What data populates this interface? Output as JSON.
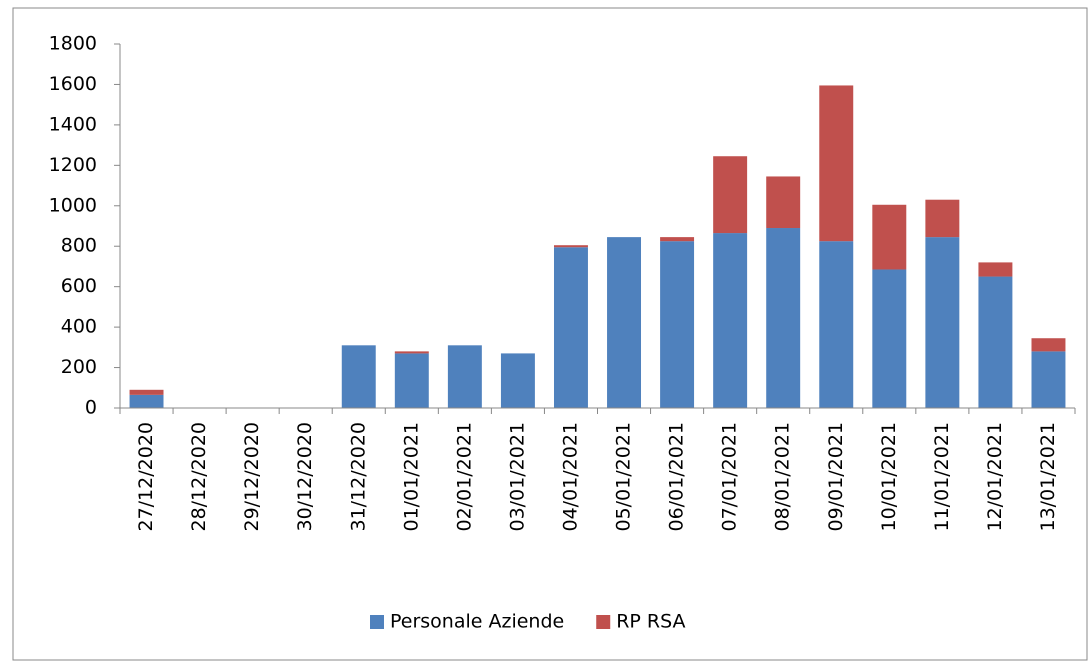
{
  "chart_data": {
    "type": "stacked_bar",
    "categories": [
      "27/12/2020",
      "28/12/2020",
      "29/12/2020",
      "30/12/2020",
      "31/12/2020",
      "01/01/2021",
      "02/01/2021",
      "03/01/2021",
      "04/01/2021",
      "05/01/2021",
      "06/01/2021",
      "07/01/2021",
      "08/01/2021",
      "09/01/2021",
      "10/01/2021",
      "11/01/2021",
      "12/01/2021",
      "13/01/2021"
    ],
    "series": [
      {
        "name": "Personale Aziende",
        "color": "#4f81bd",
        "values": [
          65,
          0,
          0,
          0,
          310,
          270,
          310,
          270,
          795,
          845,
          825,
          865,
          890,
          825,
          685,
          845,
          650,
          280
        ]
      },
      {
        "name": "RP RSA",
        "color": "#c0504d",
        "values": [
          25,
          0,
          0,
          0,
          0,
          10,
          0,
          0,
          10,
          0,
          20,
          380,
          255,
          770,
          320,
          185,
          70,
          65
        ]
      }
    ],
    "ylim": [
      0,
      1800
    ],
    "yticks": [
      0,
      200,
      400,
      600,
      800,
      1000,
      1200,
      1400,
      1600,
      1800
    ],
    "grid": false,
    "legend": "bottom"
  }
}
